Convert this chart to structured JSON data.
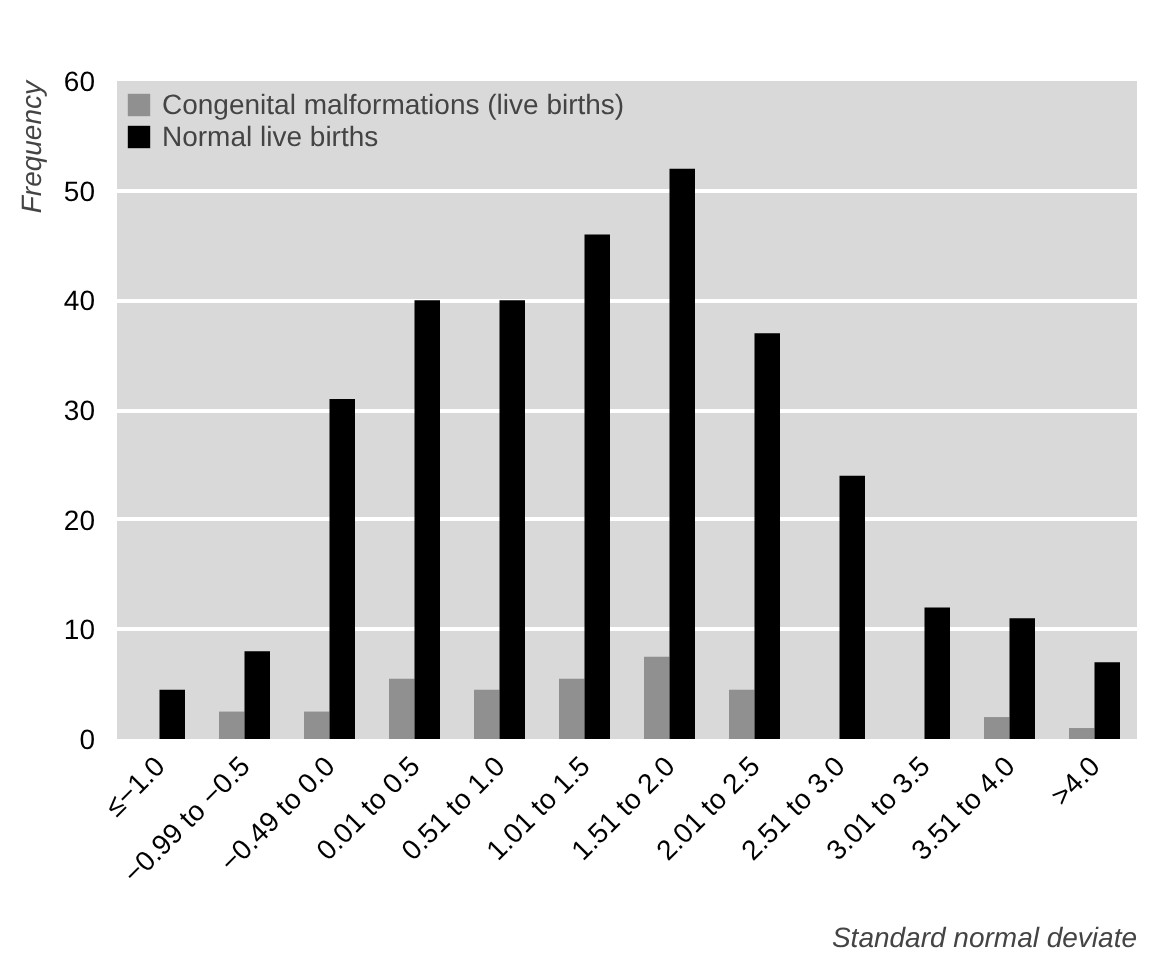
{
  "chart_data": {
    "type": "bar",
    "xlabel": "Standard normal deviate",
    "ylabel": "Frequency",
    "categories": [
      "≤−1.0",
      "−0.99 to −0.5",
      "−0.49 to 0.0",
      "0.01 to 0.5",
      "0.51 to 1.0",
      "1.01 to 1.5",
      "1.51 to 2.0",
      "2.01 to 2.5",
      "2.51 to 3.0",
      "3.01 to 3.5",
      "3.51 to 4.0",
      ">4.0"
    ],
    "series": [
      {
        "name": "Congenital malformations (live births)",
        "color": "#909090",
        "values": [
          null,
          2.5,
          2.5,
          5.5,
          4.5,
          5.5,
          7.5,
          4.5,
          null,
          null,
          2,
          1
        ]
      },
      {
        "name": "Normal live births",
        "color": "#000000",
        "values": [
          4.5,
          8,
          31,
          40,
          40,
          46,
          52,
          37,
          24,
          12,
          11,
          7
        ]
      }
    ],
    "ylim": [
      0,
      60
    ],
    "yticks": [
      0,
      10,
      20,
      30,
      40,
      50,
      60
    ],
    "grid": "y",
    "legend": "top left"
  }
}
